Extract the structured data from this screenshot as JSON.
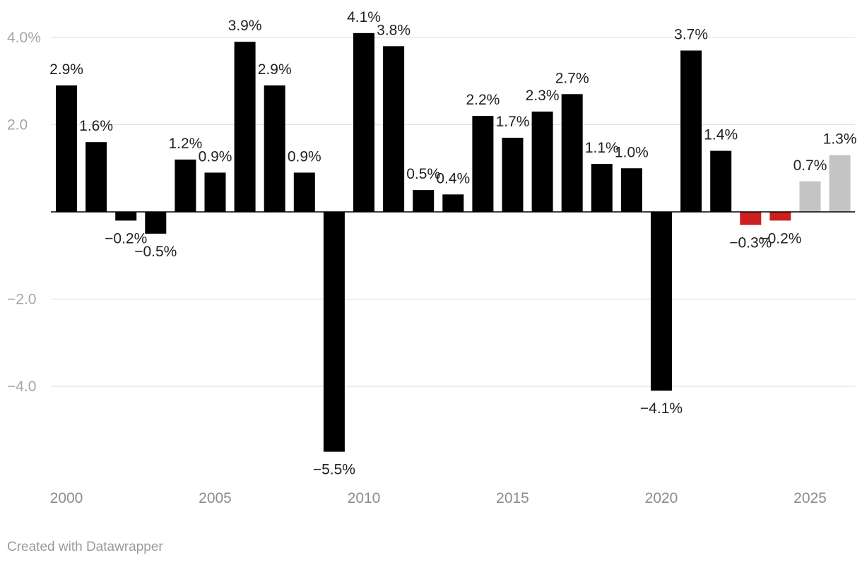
{
  "chart_data": {
    "type": "bar",
    "title": "",
    "xlabel": "",
    "ylabel": "",
    "ylim": [
      -6.2,
      4.4
    ],
    "y_ticks": [
      {
        "value": 4,
        "label": "4.0%"
      },
      {
        "value": 2,
        "label": "2.0"
      },
      {
        "value": 0,
        "label": ""
      },
      {
        "value": -2,
        "label": "−2.0"
      },
      {
        "value": -4,
        "label": "−4.0"
      }
    ],
    "x_ticks": [
      {
        "year": 2000,
        "label": "2000"
      },
      {
        "year": 2005,
        "label": "2005"
      },
      {
        "year": 2010,
        "label": "2010"
      },
      {
        "year": 2015,
        "label": "2015"
      },
      {
        "year": 2020,
        "label": "2020"
      },
      {
        "year": 2025,
        "label": "2025"
      }
    ],
    "bars": [
      {
        "year": 2000,
        "value": 2.9,
        "label": "2.9%",
        "group": "actual"
      },
      {
        "year": 2001,
        "value": 1.6,
        "label": "1.6%",
        "group": "actual"
      },
      {
        "year": 2002,
        "value": -0.2,
        "label": "−0.2%",
        "group": "actual"
      },
      {
        "year": 2003,
        "value": -0.5,
        "label": "−0.5%",
        "group": "actual"
      },
      {
        "year": 2004,
        "value": 1.2,
        "label": "1.2%",
        "group": "actual"
      },
      {
        "year": 2005,
        "value": 0.9,
        "label": "0.9%",
        "group": "actual"
      },
      {
        "year": 2006,
        "value": 3.9,
        "label": "3.9%",
        "group": "actual"
      },
      {
        "year": 2007,
        "value": 2.9,
        "label": "2.9%",
        "group": "actual"
      },
      {
        "year": 2008,
        "value": 0.9,
        "label": "0.9%",
        "group": "actual"
      },
      {
        "year": 2009,
        "value": -5.5,
        "label": "−5.5%",
        "group": "actual"
      },
      {
        "year": 2010,
        "value": 4.1,
        "label": "4.1%",
        "group": "actual"
      },
      {
        "year": 2011,
        "value": 3.8,
        "label": "3.8%",
        "group": "actual"
      },
      {
        "year": 2012,
        "value": 0.5,
        "label": "0.5%",
        "group": "actual"
      },
      {
        "year": 2013,
        "value": 0.4,
        "label": "0.4%",
        "group": "actual"
      },
      {
        "year": 2014,
        "value": 2.2,
        "label": "2.2%",
        "group": "actual"
      },
      {
        "year": 2015,
        "value": 1.7,
        "label": "1.7%",
        "group": "actual"
      },
      {
        "year": 2016,
        "value": 2.3,
        "label": "2.3%",
        "group": "actual"
      },
      {
        "year": 2017,
        "value": 2.7,
        "label": "2.7%",
        "group": "actual"
      },
      {
        "year": 2018,
        "value": 1.1,
        "label": "1.1%",
        "group": "actual"
      },
      {
        "year": 2019,
        "value": 1.0,
        "label": "1.0%",
        "group": "actual"
      },
      {
        "year": 2020,
        "value": -4.1,
        "label": "−4.1%",
        "group": "actual"
      },
      {
        "year": 2021,
        "value": 3.7,
        "label": "3.7%",
        "group": "actual"
      },
      {
        "year": 2022,
        "value": 1.4,
        "label": "1.4%",
        "group": "actual"
      },
      {
        "year": 2023,
        "value": -0.3,
        "label": "−0.3%",
        "group": "recent"
      },
      {
        "year": 2024,
        "value": -0.2,
        "label": "−0.2%",
        "group": "recent"
      },
      {
        "year": 2025,
        "value": 0.7,
        "label": "0.7%",
        "group": "forecast"
      },
      {
        "year": 2026,
        "value": 1.3,
        "label": "1.3%",
        "group": "forecast"
      }
    ],
    "colors": {
      "actual": "#000000",
      "recent": "#cc1f1f",
      "forecast": "#c4c4c4"
    },
    "grid": true,
    "legend": "none"
  },
  "footer": {
    "credit": "Created with Datawrapper"
  }
}
